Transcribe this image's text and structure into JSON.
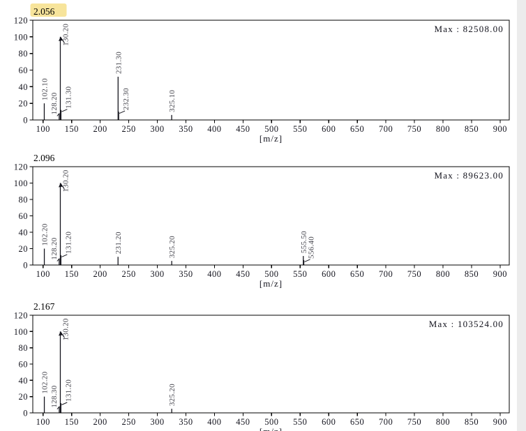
{
  "colors": {
    "axis": "#000000",
    "peak_line": "#15151d",
    "peak_label": "#46464e",
    "tick_label": "#14141e",
    "title_text": "#000000",
    "highlight": "#f7e49b",
    "scrollbar_track": "#ececec"
  },
  "chart_data": [
    {
      "type": "bar",
      "title": "2.056",
      "title_highlighted": true,
      "max_label": "Max : 82508.00",
      "xlabel": "[m/z]",
      "xlim": [
        82,
        916
      ],
      "ylim": [
        0,
        120
      ],
      "x_ticks": [
        100,
        150,
        200,
        250,
        300,
        350,
        400,
        450,
        500,
        550,
        600,
        650,
        700,
        750,
        800,
        850,
        900
      ],
      "y_ticks": [
        0,
        20,
        40,
        60,
        80,
        100,
        120
      ],
      "peaks": [
        {
          "mz": 102.1,
          "intensity": 20,
          "label": "102.10",
          "side": "center"
        },
        {
          "mz": 128.2,
          "intensity": 8,
          "label": "128.20",
          "side": "left"
        },
        {
          "mz": 130.2,
          "intensity": 100,
          "label": "130.20",
          "side": "max"
        },
        {
          "mz": 131.3,
          "intensity": 12,
          "label": "131.30",
          "side": "right"
        },
        {
          "mz": 231.3,
          "intensity": 52,
          "label": "231.30",
          "side": "center"
        },
        {
          "mz": 232.3,
          "intensity": 10,
          "label": "232.30",
          "side": "right"
        },
        {
          "mz": 325.1,
          "intensity": 6,
          "label": "325.10",
          "side": "center"
        }
      ]
    },
    {
      "type": "bar",
      "title": "2.096",
      "title_highlighted": false,
      "max_label": "Max : 89623.00",
      "xlabel": "[m/z]",
      "xlim": [
        82,
        916
      ],
      "ylim": [
        0,
        120
      ],
      "x_ticks": [
        100,
        150,
        200,
        250,
        300,
        350,
        400,
        450,
        500,
        550,
        600,
        650,
        700,
        750,
        800,
        850,
        900
      ],
      "y_ticks": [
        0,
        20,
        40,
        60,
        80,
        100,
        120
      ],
      "peaks": [
        {
          "mz": 102.2,
          "intensity": 20,
          "label": "102.20",
          "side": "center"
        },
        {
          "mz": 128.2,
          "intensity": 8,
          "label": "128.20",
          "side": "left"
        },
        {
          "mz": 130.2,
          "intensity": 100,
          "label": "130.20",
          "side": "max"
        },
        {
          "mz": 131.2,
          "intensity": 12,
          "label": "131.20",
          "side": "right"
        },
        {
          "mz": 231.2,
          "intensity": 10,
          "label": "231.20",
          "side": "center"
        },
        {
          "mz": 325.2,
          "intensity": 5,
          "label": "325.20",
          "side": "center"
        },
        {
          "mz": 555.5,
          "intensity": 11,
          "label": "555.50",
          "side": "center"
        },
        {
          "mz": 556.4,
          "intensity": 6,
          "label": "556.40",
          "side": "right"
        }
      ]
    },
    {
      "type": "bar",
      "title": "2.167",
      "title_highlighted": false,
      "max_label": "Max : 103524.00",
      "xlabel": "[m/z]",
      "xlim": [
        82,
        916
      ],
      "ylim": [
        0,
        120
      ],
      "x_ticks": [
        100,
        150,
        200,
        250,
        300,
        350,
        400,
        450,
        500,
        550,
        600,
        650,
        700,
        750,
        800,
        850,
        900
      ],
      "y_ticks": [
        0,
        20,
        40,
        60,
        80,
        100,
        120
      ],
      "peaks": [
        {
          "mz": 102.2,
          "intensity": 20,
          "label": "102.20",
          "side": "center"
        },
        {
          "mz": 128.3,
          "intensity": 8,
          "label": "128.30",
          "side": "left"
        },
        {
          "mz": 130.2,
          "intensity": 100,
          "label": "130.20",
          "side": "max"
        },
        {
          "mz": 131.2,
          "intensity": 12,
          "label": "131.20",
          "side": "right"
        },
        {
          "mz": 325.2,
          "intensity": 5,
          "label": "325.20",
          "side": "center"
        }
      ]
    }
  ]
}
